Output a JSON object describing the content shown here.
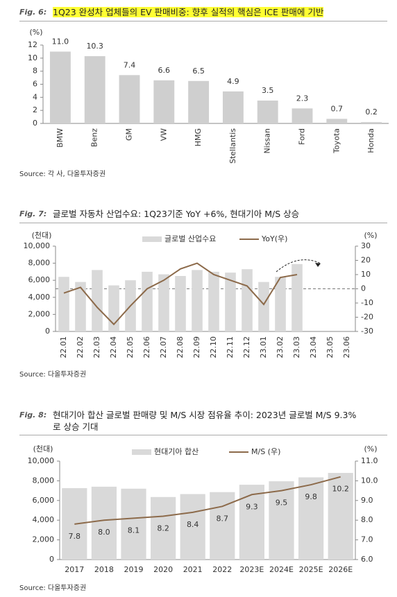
{
  "chart_data": [
    {
      "type": "bar",
      "figure_label": "Fig. 6:",
      "title": "1Q23 완성차 업체들의 EV 판매비중: 향후 실적의 핵심은 ICE 판매에 기반",
      "y_label": "(%)",
      "categories": [
        "BMW",
        "Benz",
        "GM",
        "VW",
        "HMG",
        "Stellantis",
        "Nissan",
        "Ford",
        "Toyota",
        "Honda"
      ],
      "values": [
        11.0,
        10.3,
        7.4,
        6.6,
        6.5,
        4.9,
        3.5,
        2.3,
        0.7,
        0.2
      ],
      "value_labels": [
        "11.0",
        "10.3",
        "7.4",
        "6.6",
        "6.5",
        "4.9",
        "3.5",
        "2.3",
        "0.7",
        "0.2"
      ],
      "color": "#cfcfcf",
      "ylim": [
        0,
        12
      ],
      "yticks": [
        0,
        2,
        4,
        6,
        8,
        10,
        12
      ],
      "source": "Source: 각 사, 다올투자증권"
    },
    {
      "type": "combo",
      "figure_label": "Fig. 7:",
      "title": "글로벌 자동차 산업수요: 1Q23기준 YoY +6%, 현대기아 M/S 상승",
      "y_label": "(천대)",
      "y2_label": "(%)",
      "categories": [
        "22.01",
        "22.02",
        "22.03",
        "22.04",
        "22.05",
        "22.06",
        "22.07",
        "22.08",
        "22.09",
        "22.10",
        "22.11",
        "22.12",
        "23.01",
        "23.02",
        "23.03",
        "23.04",
        "23.05",
        "23.06"
      ],
      "series": [
        {
          "name": "글로벌 산업수요",
          "type": "bar",
          "color": "#d9d9d9",
          "values": [
            6400,
            5800,
            7200,
            5400,
            6000,
            7000,
            6700,
            6500,
            7200,
            7000,
            6900,
            7300,
            5800,
            6400,
            7900,
            null,
            null,
            null
          ]
        },
        {
          "name": "YoY(우)",
          "type": "line",
          "axis": "y2",
          "color": "#8c6a4a",
          "values": [
            -3,
            1,
            -13,
            -25,
            -12,
            0,
            6,
            14,
            18,
            10,
            6,
            2,
            -11,
            8,
            10,
            null,
            null,
            null
          ]
        }
      ],
      "ylim": [
        0,
        10000
      ],
      "yticks": [
        0,
        {
          "value": 2000,
          "label": "2,000"
        },
        {
          "value": 4000,
          "label": "4,000"
        },
        {
          "value": 6000,
          "label": "6,000"
        },
        {
          "value": 8000,
          "label": "8,000"
        },
        {
          "value": 10000,
          "label": "10,000"
        }
      ],
      "y2lim": [
        -30,
        30
      ],
      "y2ticks": [
        -30,
        -20,
        -10,
        0,
        10,
        20,
        30
      ],
      "y2_refline": 0,
      "source": "Source: 다올투자증권"
    },
    {
      "type": "combo",
      "figure_label": "Fig. 8:",
      "title": "현대기아 합산 글로벌 판매량 및 M/S 시장 점유율 추이: 2023년 글로벌 M/S 9.3%로 상승 기대",
      "y_label": "(천대)",
      "y2_label": "(%)",
      "categories": [
        "2017",
        "2018",
        "2019",
        "2020",
        "2021",
        "2022",
        "2023E",
        "2024E",
        "2025E",
        "2026E"
      ],
      "series": [
        {
          "name": "현대기아 합산",
          "type": "bar",
          "color": "#d9d9d9",
          "values": [
            7250,
            7400,
            7200,
            6350,
            6650,
            6850,
            7600,
            7950,
            8350,
            8800
          ]
        },
        {
          "name": "M/S (우)",
          "type": "line",
          "axis": "y2",
          "color": "#8c6a4a",
          "values": [
            7.8,
            8.0,
            8.1,
            8.2,
            8.4,
            8.7,
            9.3,
            9.5,
            9.8,
            10.2
          ],
          "value_labels": [
            "7.8",
            "8.0",
            "8.1",
            "8.2",
            "8.4",
            "8.7",
            "9.3",
            "9.5",
            "9.8",
            "10.2"
          ]
        }
      ],
      "ylim": [
        0,
        10000
      ],
      "yticks": [
        0,
        {
          "value": 2000,
          "label": "2,000"
        },
        {
          "value": 4000,
          "label": "4,000"
        },
        {
          "value": 6000,
          "label": "6,000"
        },
        {
          "value": 8000,
          "label": "8,000"
        },
        {
          "value": 10000,
          "label": "10,000"
        }
      ],
      "y2lim": [
        6,
        11
      ],
      "y2ticks": [
        {
          "value": 6,
          "label": "6.0"
        },
        {
          "value": 7,
          "label": "7.0"
        },
        {
          "value": 8,
          "label": "8.0"
        },
        {
          "value": 9,
          "label": "9.0"
        },
        {
          "value": 10,
          "label": "10.0"
        },
        {
          "value": 11,
          "label": "11.0"
        }
      ],
      "source": "Source: 다올투자증권"
    }
  ]
}
